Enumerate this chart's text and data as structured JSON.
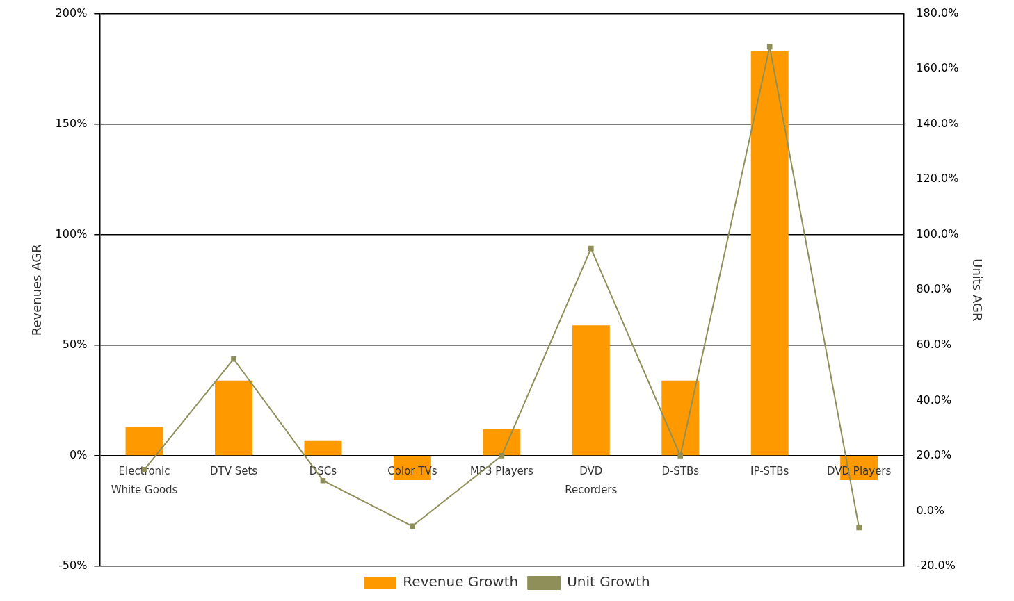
{
  "chart_data": {
    "type": "bar",
    "categories": [
      "Electronic White Goods",
      "DTV Sets",
      "DSCs",
      "Color TVs",
      "MP3 Players",
      "DVD Recorders",
      "D-STBs",
      "IP-STBs",
      "DVD Players"
    ],
    "series": [
      {
        "name": "Revenue Growth",
        "color": "#ff9900",
        "values": [
          13,
          34,
          7,
          -11,
          12,
          59,
          34,
          183,
          -11
        ]
      },
      {
        "name": "Unit Growth",
        "type": "line",
        "axis": "y2",
        "color": "#8f8f5a",
        "values": [
          15,
          55,
          11,
          -5.5,
          20,
          95,
          20,
          168,
          -6
        ]
      }
    ],
    "ylabel": "Revenues AGR",
    "y2label": "Units AGR",
    "ylim": [
      -50,
      200
    ],
    "yticks": [
      {
        "value": -50,
        "label": "-50%"
      },
      {
        "value": 0,
        "label": "0%"
      },
      {
        "value": 50,
        "label": "50%"
      },
      {
        "value": 100,
        "label": "100%"
      },
      {
        "value": 150,
        "label": "150%"
      },
      {
        "value": 200,
        "label": "200%"
      }
    ],
    "y2lim": [
      -20,
      180
    ],
    "y2ticks": [
      {
        "value": -20,
        "label": "-20.0%"
      },
      {
        "value": 0,
        "label": "0.0%"
      },
      {
        "value": 20,
        "label": "20.0%"
      },
      {
        "value": 40,
        "label": "40.0%"
      },
      {
        "value": 60,
        "label": "60.0%"
      },
      {
        "value": 80,
        "label": "80.0%"
      },
      {
        "value": 100,
        "label": "100.0%"
      },
      {
        "value": 120,
        "label": "120.0%"
      },
      {
        "value": 140,
        "label": "140.0%"
      },
      {
        "value": 160,
        "label": "160.0%"
      },
      {
        "value": 180,
        "label": "180.0%"
      }
    ],
    "grid": "y",
    "legend": "bottom",
    "marker": "square",
    "line_style": "solid"
  }
}
